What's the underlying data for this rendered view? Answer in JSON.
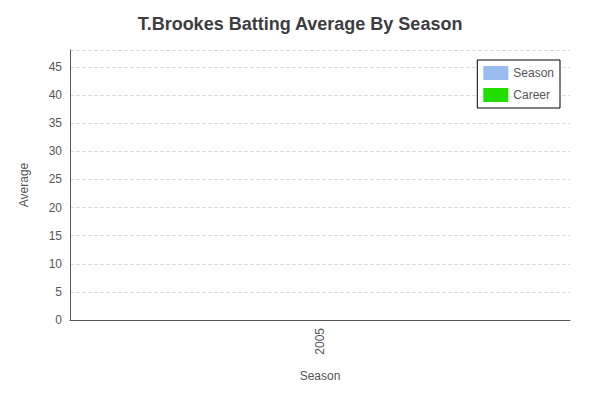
{
  "chart_data": {
    "type": "bar",
    "title": "T.Brookes Batting Average By Season",
    "xlabel": "Season",
    "ylabel": "Average",
    "x": [],
    "series": [
      {
        "name": "Season",
        "color": "#99bbee",
        "values": []
      },
      {
        "name": "Career",
        "color": "#22dd00",
        "values": []
      }
    ],
    "xlim": [
      2004.5,
      2005.5
    ],
    "xticks": [
      2005
    ],
    "ylim": [
      0,
      48
    ],
    "yticks": [
      0,
      5,
      10,
      15,
      20,
      25,
      30,
      35,
      40,
      45
    ],
    "grid": true,
    "legend": "upper right"
  }
}
